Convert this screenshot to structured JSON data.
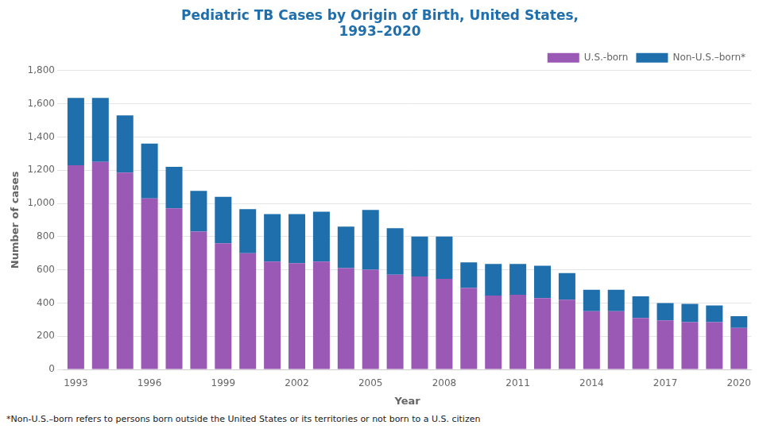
{
  "chart_data": {
    "type": "bar",
    "title": "Pediatric TB Cases by Origin of Birth, United States,\n1993–2020",
    "x_label": "Year",
    "y_label": "Number of cases",
    "categories": [
      "1993",
      null,
      null,
      "1996",
      null,
      null,
      "1999",
      null,
      null,
      "2002",
      null,
      null,
      "2005",
      null,
      null,
      "2008",
      null,
      null,
      "2011",
      null,
      null,
      "2014",
      null,
      null,
      "2017",
      null,
      null,
      "2020"
    ],
    "series": [
      {
        "name": "U.S.-born",
        "color": "#9b59b6",
        "values": [
          1230,
          1250,
          1185,
          1030,
          970,
          830,
          760,
          700,
          650,
          640,
          650,
          610,
          600,
          570,
          560,
          545,
          490,
          445,
          450,
          430,
          420,
          350,
          350,
          310,
          295,
          285,
          285,
          250
        ]
      },
      {
        "name": "Non-U.S.–born*",
        "color": "#1f6fad",
        "values": [
          405,
          385,
          345,
          330,
          250,
          245,
          280,
          265,
          285,
          295,
          300,
          250,
          360,
          280,
          240,
          255,
          155,
          190,
          185,
          195,
          160,
          130,
          130,
          130,
          105,
          110,
          100,
          70
        ]
      }
    ],
    "stacked": true,
    "ylim": [
      0,
      1800
    ],
    "yticks": [
      0,
      200,
      400,
      600,
      800,
      {
        "value": 1000,
        "label": "1,000"
      },
      {
        "value": 1200,
        "label": "1,200"
      },
      {
        "value": 1400,
        "label": "1,400"
      },
      {
        "value": 1600,
        "label": "1,600"
      },
      {
        "value": 1800,
        "label": "1,800"
      }
    ],
    "grid": true,
    "legend": "upper right",
    "annotations": [
      "*Non-U.S.–born refers to persons born outside the United States or its territories or not born to a U.S. citizen"
    ]
  }
}
